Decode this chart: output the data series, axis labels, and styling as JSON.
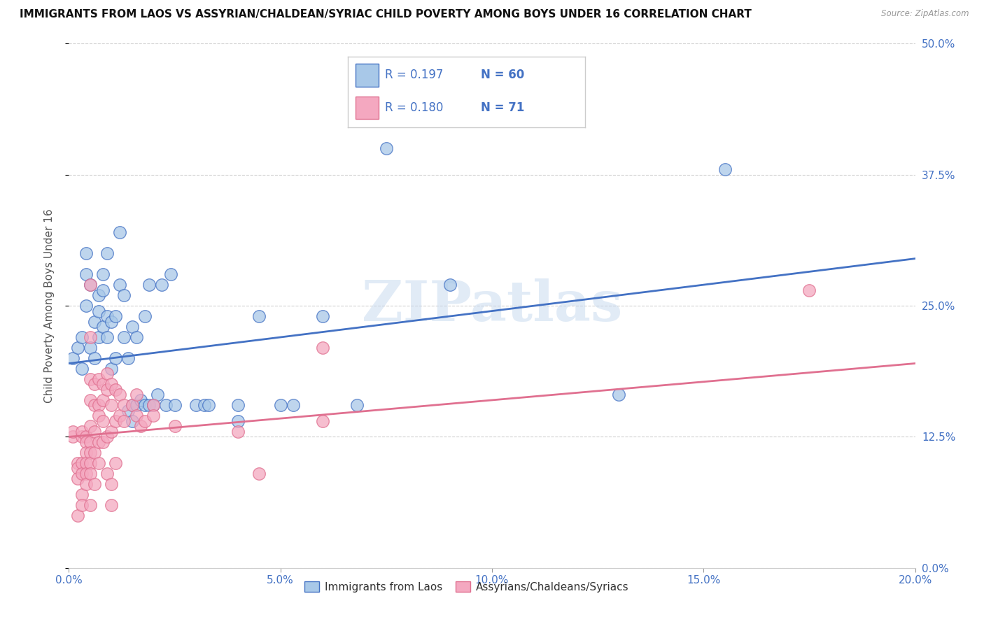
{
  "title": "IMMIGRANTS FROM LAOS VS ASSYRIAN/CHALDEAN/SYRIAC CHILD POVERTY AMONG BOYS UNDER 16 CORRELATION CHART",
  "source": "Source: ZipAtlas.com",
  "ylabel": "Child Poverty Among Boys Under 16",
  "xlabel_ticks": [
    "0.0%",
    "5.0%",
    "10.0%",
    "15.0%",
    "20.0%"
  ],
  "ylabel_ticks": [
    "0.0%",
    "12.5%",
    "25.0%",
    "37.5%",
    "50.0%"
  ],
  "xlim": [
    0.0,
    0.2
  ],
  "ylim": [
    0.0,
    0.5
  ],
  "legend_label1": "Immigrants from Laos",
  "legend_label2": "Assyrians/Chaldeans/Syriacs",
  "R1": 0.197,
  "N1": 60,
  "R2": 0.18,
  "N2": 71,
  "color_blue": "#a8c8e8",
  "color_pink": "#f4a8c0",
  "line_blue": "#4472c4",
  "line_pink": "#e07090",
  "watermark": "ZIPatlas",
  "blue_points": [
    [
      0.001,
      0.2
    ],
    [
      0.002,
      0.21
    ],
    [
      0.003,
      0.19
    ],
    [
      0.003,
      0.22
    ],
    [
      0.004,
      0.25
    ],
    [
      0.004,
      0.28
    ],
    [
      0.004,
      0.3
    ],
    [
      0.005,
      0.27
    ],
    [
      0.005,
      0.21
    ],
    [
      0.006,
      0.2
    ],
    [
      0.006,
      0.235
    ],
    [
      0.007,
      0.22
    ],
    [
      0.007,
      0.245
    ],
    [
      0.007,
      0.26
    ],
    [
      0.008,
      0.23
    ],
    [
      0.008,
      0.265
    ],
    [
      0.008,
      0.28
    ],
    [
      0.009,
      0.22
    ],
    [
      0.009,
      0.24
    ],
    [
      0.009,
      0.3
    ],
    [
      0.01,
      0.19
    ],
    [
      0.01,
      0.235
    ],
    [
      0.011,
      0.2
    ],
    [
      0.011,
      0.24
    ],
    [
      0.012,
      0.27
    ],
    [
      0.012,
      0.32
    ],
    [
      0.013,
      0.22
    ],
    [
      0.013,
      0.26
    ],
    [
      0.014,
      0.15
    ],
    [
      0.014,
      0.2
    ],
    [
      0.015,
      0.14
    ],
    [
      0.015,
      0.155
    ],
    [
      0.015,
      0.23
    ],
    [
      0.016,
      0.155
    ],
    [
      0.016,
      0.22
    ],
    [
      0.017,
      0.16
    ],
    [
      0.018,
      0.155
    ],
    [
      0.018,
      0.24
    ],
    [
      0.019,
      0.155
    ],
    [
      0.019,
      0.27
    ],
    [
      0.02,
      0.155
    ],
    [
      0.021,
      0.165
    ],
    [
      0.022,
      0.27
    ],
    [
      0.023,
      0.155
    ],
    [
      0.024,
      0.28
    ],
    [
      0.025,
      0.155
    ],
    [
      0.03,
      0.155
    ],
    [
      0.032,
      0.155
    ],
    [
      0.033,
      0.155
    ],
    [
      0.04,
      0.14
    ],
    [
      0.04,
      0.155
    ],
    [
      0.045,
      0.24
    ],
    [
      0.05,
      0.155
    ],
    [
      0.053,
      0.155
    ],
    [
      0.06,
      0.24
    ],
    [
      0.068,
      0.155
    ],
    [
      0.075,
      0.4
    ],
    [
      0.09,
      0.27
    ],
    [
      0.13,
      0.165
    ],
    [
      0.155,
      0.38
    ]
  ],
  "pink_points": [
    [
      0.001,
      0.125
    ],
    [
      0.001,
      0.13
    ],
    [
      0.002,
      0.1
    ],
    [
      0.002,
      0.095
    ],
    [
      0.002,
      0.085
    ],
    [
      0.002,
      0.05
    ],
    [
      0.003,
      0.125
    ],
    [
      0.003,
      0.13
    ],
    [
      0.003,
      0.1
    ],
    [
      0.003,
      0.09
    ],
    [
      0.003,
      0.07
    ],
    [
      0.003,
      0.06
    ],
    [
      0.004,
      0.125
    ],
    [
      0.004,
      0.12
    ],
    [
      0.004,
      0.11
    ],
    [
      0.004,
      0.1
    ],
    [
      0.004,
      0.09
    ],
    [
      0.004,
      0.08
    ],
    [
      0.005,
      0.27
    ],
    [
      0.005,
      0.22
    ],
    [
      0.005,
      0.18
    ],
    [
      0.005,
      0.16
    ],
    [
      0.005,
      0.135
    ],
    [
      0.005,
      0.12
    ],
    [
      0.005,
      0.11
    ],
    [
      0.005,
      0.1
    ],
    [
      0.005,
      0.09
    ],
    [
      0.005,
      0.06
    ],
    [
      0.006,
      0.175
    ],
    [
      0.006,
      0.155
    ],
    [
      0.006,
      0.13
    ],
    [
      0.006,
      0.11
    ],
    [
      0.006,
      0.08
    ],
    [
      0.007,
      0.18
    ],
    [
      0.007,
      0.155
    ],
    [
      0.007,
      0.145
    ],
    [
      0.007,
      0.12
    ],
    [
      0.007,
      0.1
    ],
    [
      0.008,
      0.175
    ],
    [
      0.008,
      0.16
    ],
    [
      0.008,
      0.14
    ],
    [
      0.008,
      0.12
    ],
    [
      0.009,
      0.185
    ],
    [
      0.009,
      0.17
    ],
    [
      0.009,
      0.125
    ],
    [
      0.009,
      0.09
    ],
    [
      0.01,
      0.175
    ],
    [
      0.01,
      0.155
    ],
    [
      0.01,
      0.13
    ],
    [
      0.01,
      0.08
    ],
    [
      0.01,
      0.06
    ],
    [
      0.011,
      0.17
    ],
    [
      0.011,
      0.14
    ],
    [
      0.011,
      0.1
    ],
    [
      0.012,
      0.165
    ],
    [
      0.012,
      0.145
    ],
    [
      0.013,
      0.155
    ],
    [
      0.013,
      0.14
    ],
    [
      0.015,
      0.155
    ],
    [
      0.016,
      0.165
    ],
    [
      0.016,
      0.145
    ],
    [
      0.017,
      0.135
    ],
    [
      0.018,
      0.14
    ],
    [
      0.02,
      0.155
    ],
    [
      0.02,
      0.145
    ],
    [
      0.025,
      0.135
    ],
    [
      0.04,
      0.13
    ],
    [
      0.045,
      0.09
    ],
    [
      0.06,
      0.21
    ],
    [
      0.06,
      0.14
    ],
    [
      0.175,
      0.265
    ]
  ],
  "blue_line_x": [
    0.0,
    0.2
  ],
  "blue_line_y": [
    0.195,
    0.295
  ],
  "pink_line_x": [
    0.0,
    0.2
  ],
  "pink_line_y": [
    0.125,
    0.195
  ]
}
